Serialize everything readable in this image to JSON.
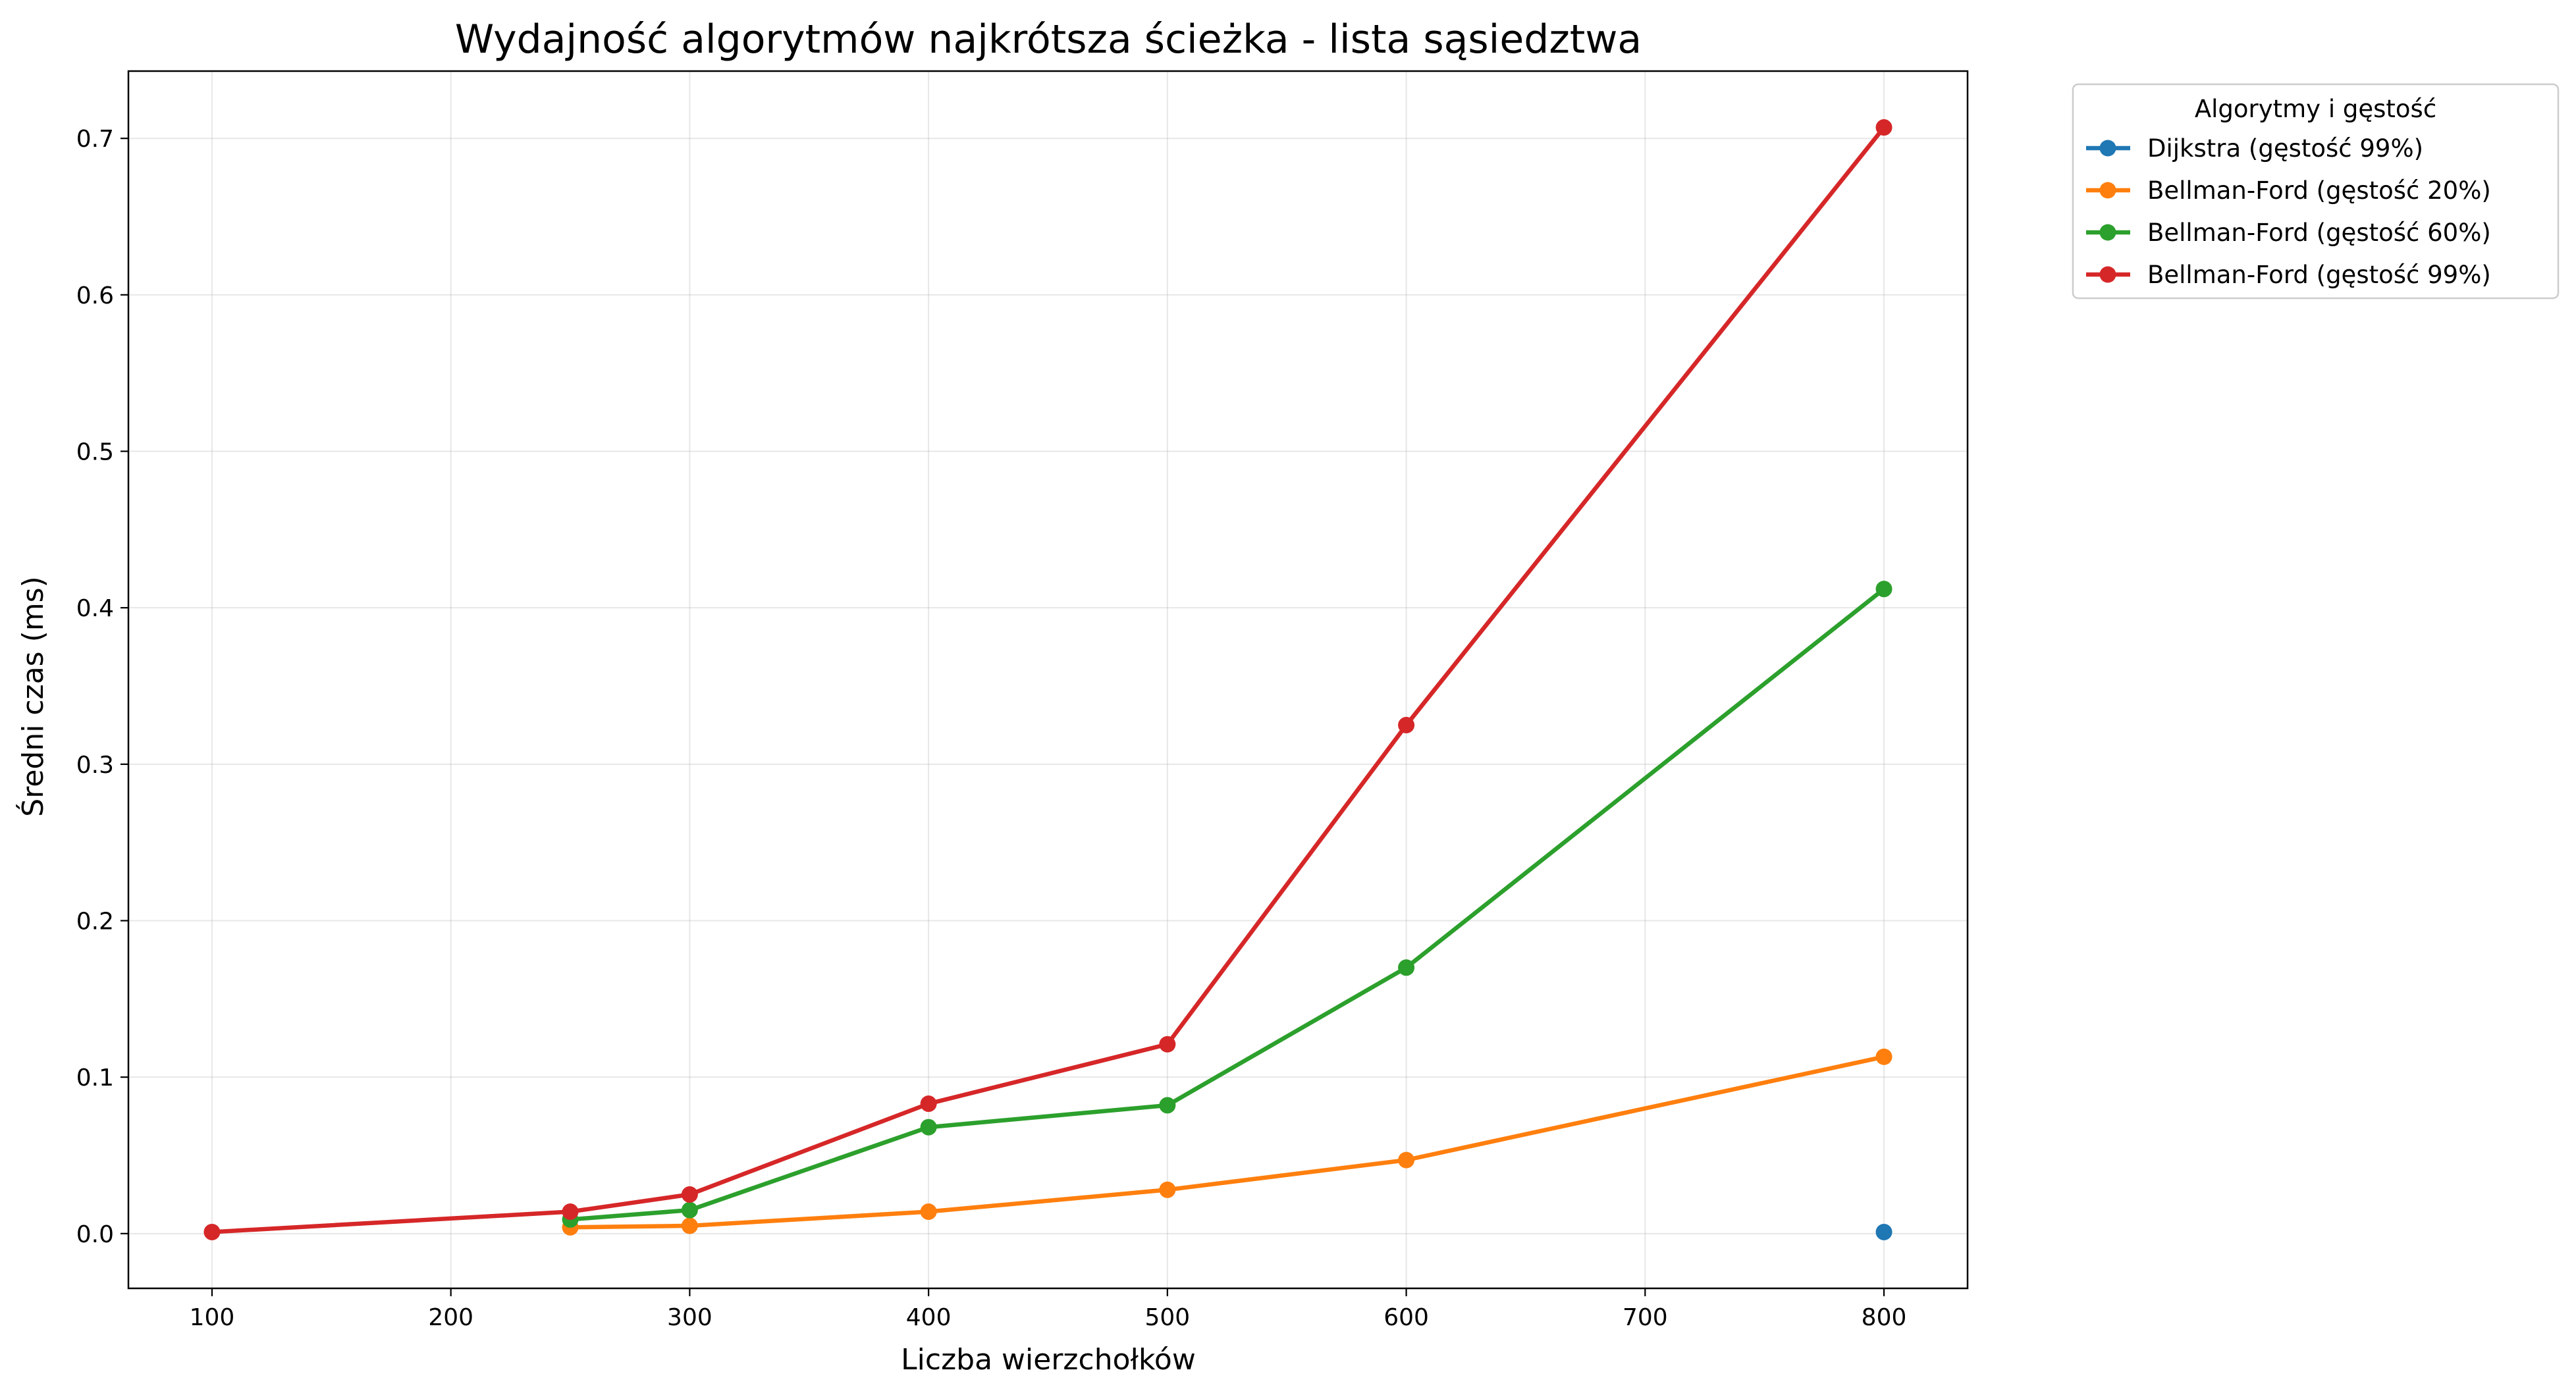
{
  "chart_data": {
    "type": "line",
    "title": "Wydajność algorytmów najkrótsza ścieżka - lista sąsiedztwa",
    "xlabel": "Liczba wierzchołków",
    "ylabel": "Średni czas (ms)",
    "xlim": [
      65,
      835
    ],
    "ylim": [
      -0.035,
      0.743
    ],
    "xticks": [
      100,
      200,
      300,
      400,
      500,
      600,
      700,
      800
    ],
    "yticks": [
      0.0,
      0.1,
      0.2,
      0.3,
      0.4,
      0.5,
      0.6,
      0.7
    ],
    "xtick_labels": [
      "100",
      "200",
      "300",
      "400",
      "500",
      "600",
      "700",
      "800"
    ],
    "ytick_labels": [
      "0.0",
      "0.1",
      "0.2",
      "0.3",
      "0.4",
      "0.5",
      "0.6",
      "0.7"
    ],
    "grid": true,
    "legend_title": "Algorytmy i gęstość",
    "legend_position": "outside-top-right",
    "series": [
      {
        "name": "Dijkstra (gęstość 99%)",
        "color": "#1f77b4",
        "x": [
          800
        ],
        "y": [
          0.001
        ]
      },
      {
        "name": "Bellman-Ford (gęstość 20%)",
        "color": "#ff7f0e",
        "x": [
          250,
          300,
          400,
          500,
          600,
          800
        ],
        "y": [
          0.004,
          0.005,
          0.014,
          0.028,
          0.047,
          0.113
        ]
      },
      {
        "name": "Bellman-Ford (gęstość 60%)",
        "color": "#2ca02c",
        "x": [
          250,
          300,
          400,
          500,
          600,
          800
        ],
        "y": [
          0.009,
          0.015,
          0.068,
          0.082,
          0.17,
          0.412
        ]
      },
      {
        "name": "Bellman-Ford (gęstość 99%)",
        "color": "#d62728",
        "x": [
          100,
          250,
          300,
          400,
          500,
          600,
          800
        ],
        "y": [
          0.001,
          0.014,
          0.025,
          0.083,
          0.121,
          0.325,
          0.707
        ]
      }
    ]
  }
}
